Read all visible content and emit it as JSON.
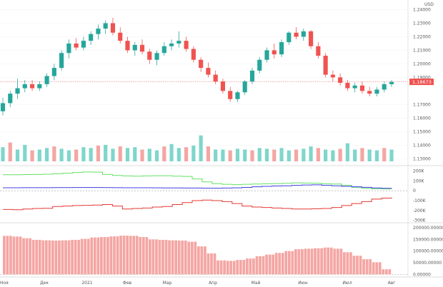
{
  "chart_data": {
    "type": "candlestick",
    "currency_label": "USD",
    "current_price_label": "1.18673",
    "current_price": 1.18673,
    "colors": {
      "up": "#26a69a",
      "down": "#ef5350",
      "volume_up": "#7fd6cb",
      "volume_down": "#f4a6a3",
      "line_green": "#66e066",
      "line_blue": "#3f3fe0",
      "line_red": "#e53935",
      "hist": "#f4a6a3",
      "grid": "#f0f0f0",
      "price_tag": "#ef5350"
    },
    "x_tick_labels": [
      "Ноя",
      "Дек",
      "2021",
      "Фев",
      "Мар",
      "Апр",
      "Май",
      "Июн",
      "Июл",
      "Авг"
    ],
    "price_axis": {
      "ticks": [
        "1.24000",
        "1.23000",
        "1.22000",
        "1.21000",
        "1.20000",
        "1.19000",
        "1.17000",
        "1.16000",
        "1.15000",
        "1.14000",
        "1.13000"
      ],
      "range": [
        1.127,
        1.245
      ]
    },
    "indicator1_axis": {
      "ticks": [
        "200K",
        "100K",
        "0",
        "-100K",
        "-200K",
        "-300K"
      ],
      "range": [
        -310000,
        240000
      ],
      "series": [
        {
          "color": "green",
          "values": [
            162000,
            162000,
            164000,
            165000,
            168000,
            172000,
            178000,
            185000,
            190000,
            188000,
            165000,
            155000,
            150000,
            148000,
            150000,
            152000,
            152000,
            148000,
            145000,
            120000,
            90000,
            72000,
            65000,
            62000,
            65000,
            68000,
            70000,
            72000,
            75000,
            80000,
            78000,
            76000,
            70000,
            68000,
            55000,
            35000,
            25000,
            20000,
            18000,
            18000
          ]
        },
        {
          "color": "blue",
          "values": [
            30000,
            30000,
            31000,
            31000,
            31000,
            32000,
            32000,
            33000,
            33000,
            33000,
            32000,
            31000,
            30000,
            30000,
            30000,
            29000,
            28000,
            28000,
            27000,
            27000,
            26000,
            26000,
            27000,
            29000,
            34000,
            40000,
            45000,
            48000,
            50000,
            55000,
            58000,
            60000,
            55000,
            50000,
            45000,
            40000,
            35000,
            28000,
            25000,
            22000
          ]
        },
        {
          "color": "red",
          "values": [
            -190000,
            -192000,
            -185000,
            -180000,
            -178000,
            -160000,
            -155000,
            -150000,
            -148000,
            -145000,
            -140000,
            -155000,
            -185000,
            -180000,
            -175000,
            -165000,
            -160000,
            -140000,
            -120000,
            -100000,
            -95000,
            -100000,
            -110000,
            -130000,
            -155000,
            -165000,
            -170000,
            -175000,
            -180000,
            -185000,
            -185000,
            -182000,
            -180000,
            -170000,
            -150000,
            -130000,
            -110000,
            -85000,
            -75000,
            -68000
          ]
        }
      ]
    },
    "indicator2_axis": {
      "ticks": [
        "200000.00000",
        "150000.00000",
        "100000.00000",
        "50000.00000",
        "0.00000"
      ],
      "range": [
        -5000,
        215000
      ],
      "values": [
        165000,
        162000,
        155000,
        148000,
        146000,
        145000,
        146000,
        148000,
        152000,
        158000,
        160000,
        163000,
        166000,
        165000,
        160000,
        150000,
        148000,
        146000,
        145000,
        140000,
        120000,
        90000,
        60000,
        58000,
        62000,
        68000,
        78000,
        85000,
        92000,
        100000,
        108000,
        110000,
        112000,
        115000,
        110000,
        95000,
        80000,
        65000,
        52000,
        22000
      ]
    },
    "candles": [
      [
        1.165,
        1.175,
        1.162,
        1.171
      ],
      [
        1.171,
        1.18,
        1.168,
        1.178
      ],
      [
        1.178,
        1.189,
        1.174,
        1.182
      ],
      [
        1.182,
        1.188,
        1.179,
        1.185
      ],
      [
        1.185,
        1.188,
        1.18,
        1.182
      ],
      [
        1.182,
        1.187,
        1.18,
        1.185
      ],
      [
        1.185,
        1.193,
        1.183,
        1.191
      ],
      [
        1.191,
        1.2,
        1.188,
        1.197
      ],
      [
        1.197,
        1.21,
        1.195,
        1.208
      ],
      [
        1.208,
        1.218,
        1.204,
        1.215
      ],
      [
        1.215,
        1.219,
        1.21,
        1.212
      ],
      [
        1.212,
        1.22,
        1.21,
        1.217
      ],
      [
        1.217,
        1.224,
        1.214,
        1.222
      ],
      [
        1.222,
        1.229,
        1.218,
        1.226
      ],
      [
        1.226,
        1.232,
        1.222,
        1.23
      ],
      [
        1.23,
        1.234,
        1.221,
        1.223
      ],
      [
        1.223,
        1.227,
        1.215,
        1.217
      ],
      [
        1.217,
        1.22,
        1.208,
        1.21
      ],
      [
        1.21,
        1.216,
        1.206,
        1.214
      ],
      [
        1.214,
        1.218,
        1.207,
        1.209
      ],
      [
        1.209,
        1.211,
        1.2,
        1.203
      ],
      [
        1.203,
        1.21,
        1.199,
        1.208
      ],
      [
        1.208,
        1.216,
        1.206,
        1.213
      ],
      [
        1.213,
        1.218,
        1.21,
        1.215
      ],
      [
        1.215,
        1.224,
        1.212,
        1.217
      ],
      [
        1.217,
        1.22,
        1.209,
        1.211
      ],
      [
        1.211,
        1.213,
        1.201,
        1.203
      ],
      [
        1.203,
        1.205,
        1.194,
        1.197
      ],
      [
        1.197,
        1.201,
        1.19,
        1.192
      ],
      [
        1.192,
        1.195,
        1.185,
        1.187
      ],
      [
        1.187,
        1.189,
        1.178,
        1.18
      ],
      [
        1.18,
        1.183,
        1.172,
        1.174
      ],
      [
        1.174,
        1.18,
        1.172,
        1.179
      ],
      [
        1.179,
        1.188,
        1.177,
        1.187
      ],
      [
        1.187,
        1.197,
        1.185,
        1.195
      ],
      [
        1.195,
        1.205,
        1.193,
        1.203
      ],
      [
        1.203,
        1.212,
        1.201,
        1.21
      ],
      [
        1.21,
        1.215,
        1.204,
        1.207
      ],
      [
        1.207,
        1.218,
        1.205,
        1.216
      ],
      [
        1.216,
        1.224,
        1.214,
        1.223
      ]
    ],
    "candles_tail": [
      [
        1.223,
        1.227,
        1.218,
        1.22
      ],
      [
        1.22,
        1.226,
        1.217,
        1.224
      ],
      [
        1.224,
        1.225,
        1.211,
        1.213
      ],
      [
        1.213,
        1.216,
        1.204,
        1.206
      ],
      [
        1.206,
        1.208,
        1.19,
        1.192
      ],
      [
        1.192,
        1.195,
        1.187,
        1.19
      ],
      [
        1.19,
        1.193,
        1.184,
        1.186
      ],
      [
        1.186,
        1.188,
        1.18,
        1.182
      ],
      [
        1.182,
        1.186,
        1.179,
        1.184
      ],
      [
        1.184,
        1.187,
        1.178,
        1.18
      ],
      [
        1.18,
        1.183,
        1.176,
        1.178
      ],
      [
        1.178,
        1.183,
        1.176,
        1.181
      ],
      [
        1.181,
        1.187,
        1.179,
        1.185
      ],
      [
        1.185,
        1.188,
        1.183,
        1.1867
      ]
    ],
    "volumes": [
      36,
      48,
      30,
      42,
      28,
      30,
      34,
      38,
      32,
      28,
      30,
      36,
      34,
      40,
      42,
      32,
      38,
      34,
      36,
      30,
      32,
      28,
      38,
      44,
      34,
      36,
      40,
      66,
      38,
      30,
      30,
      28,
      32,
      30,
      28,
      34,
      32,
      30,
      34,
      28,
      30,
      32,
      38,
      34,
      30,
      28,
      32,
      46,
      30,
      34,
      30,
      28,
      34,
      30
    ]
  }
}
